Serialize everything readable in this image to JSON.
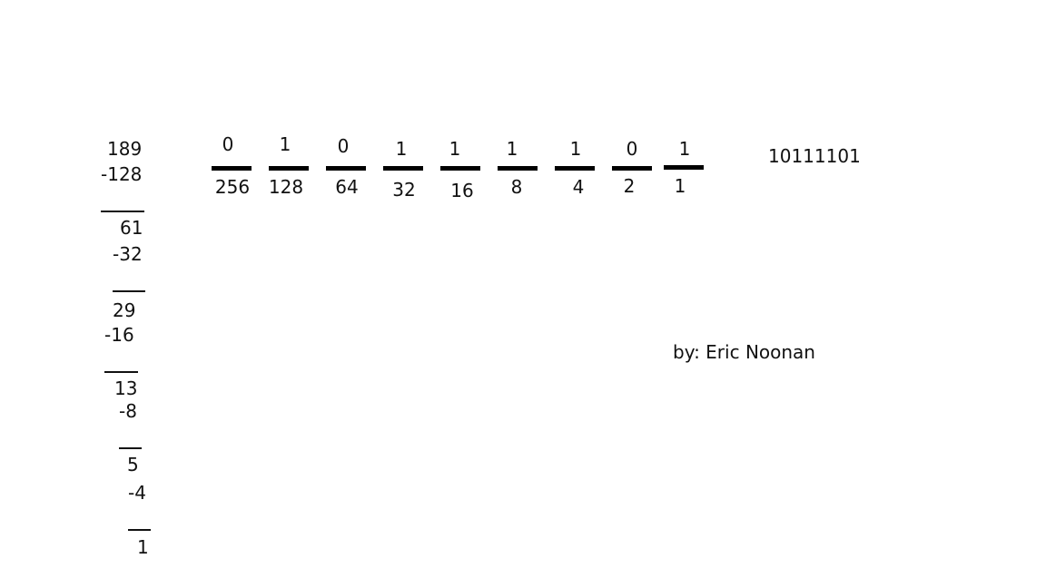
{
  "subtraction": {
    "start": "189",
    "steps": [
      {
        "subtract": "-128",
        "result": "61"
      },
      {
        "subtract": "-32",
        "result": "29"
      },
      {
        "subtract": "-16",
        "result": "13"
      },
      {
        "subtract": "-8",
        "result": "5"
      },
      {
        "subtract": "-4",
        "result": "1"
      }
    ]
  },
  "place_values": [
    {
      "bit": "0",
      "value": "256"
    },
    {
      "bit": "1",
      "value": "128"
    },
    {
      "bit": "0",
      "value": "64"
    },
    {
      "bit": "1",
      "value": "32"
    },
    {
      "bit": "1",
      "value": "16"
    },
    {
      "bit": "1",
      "value": "8"
    },
    {
      "bit": "1",
      "value": "4"
    },
    {
      "bit": "0",
      "value": "2"
    },
    {
      "bit": "1",
      "value": "1"
    }
  ],
  "binary_result": "10111101",
  "author": "by: Eric Noonan"
}
